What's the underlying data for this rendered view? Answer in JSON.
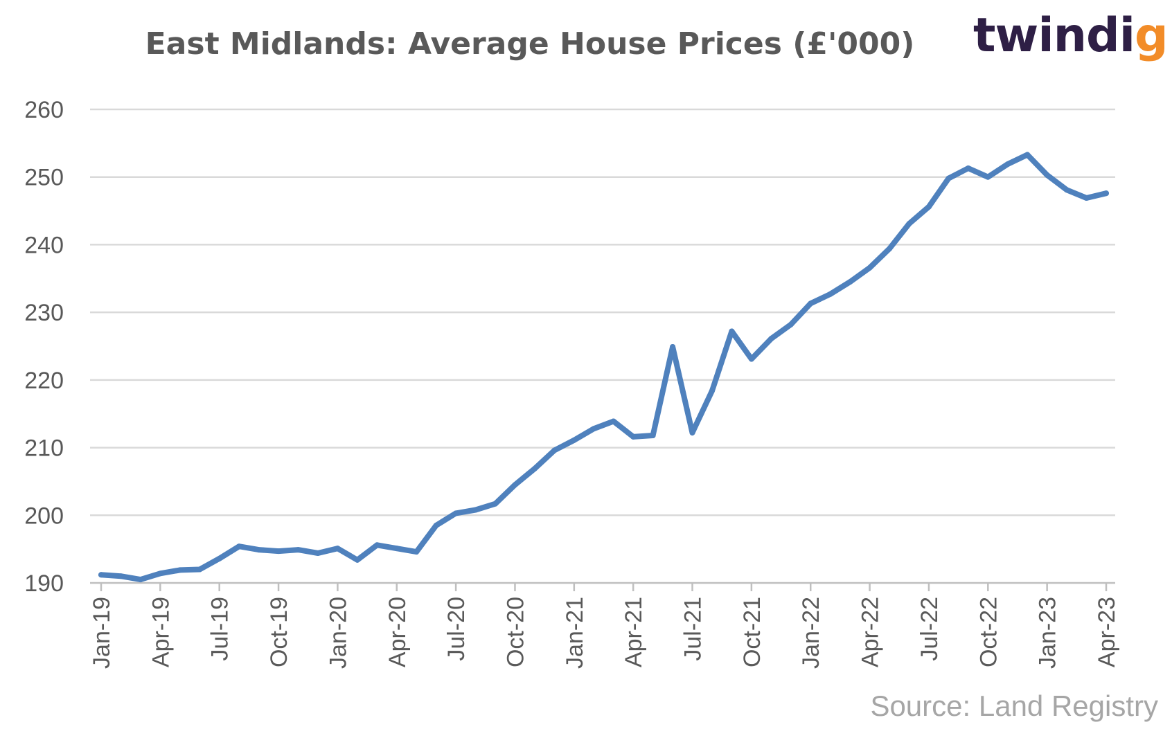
{
  "brand": {
    "name_start": "twindi",
    "name_end": "g",
    "accent_color": "#f28c28",
    "text_color": "#2e1f45"
  },
  "source": "Source: Land Registry",
  "chart_data": {
    "type": "line",
    "title": "East Midlands: Average House Prices (£'000)",
    "xlabel": "",
    "ylabel": "",
    "ylim": [
      190,
      260
    ],
    "yticks": [
      190,
      200,
      210,
      220,
      230,
      240,
      250,
      260
    ],
    "grid": true,
    "line_color": "#4f81bd",
    "x": [
      "Jan-19",
      "Feb-19",
      "Mar-19",
      "Apr-19",
      "May-19",
      "Jun-19",
      "Jul-19",
      "Aug-19",
      "Sep-19",
      "Oct-19",
      "Nov-19",
      "Dec-19",
      "Jan-20",
      "Feb-20",
      "Mar-20",
      "Apr-20",
      "May-20",
      "Jun-20",
      "Jul-20",
      "Aug-20",
      "Sep-20",
      "Oct-20",
      "Nov-20",
      "Dec-20",
      "Jan-21",
      "Feb-21",
      "Mar-21",
      "Apr-21",
      "May-21",
      "Jun-21",
      "Jul-21",
      "Aug-21",
      "Sep-21",
      "Oct-21",
      "Nov-21",
      "Dec-21",
      "Jan-22",
      "Feb-22",
      "Mar-22",
      "Apr-22",
      "May-22",
      "Jun-22",
      "Jul-22",
      "Aug-22",
      "Sep-22",
      "Oct-22",
      "Nov-22",
      "Dec-22",
      "Jan-23",
      "Feb-23",
      "Mar-23",
      "Apr-23"
    ],
    "xtick_labels": [
      "Jan-19",
      "Apr-19",
      "Jul-19",
      "Oct-19",
      "Jan-20",
      "Apr-20",
      "Jul-20",
      "Oct-20",
      "Jan-21",
      "Apr-21",
      "Jul-21",
      "Oct-21",
      "Jan-22",
      "Apr-22",
      "Jul-22",
      "Oct-22",
      "Jan-23",
      "Apr-23"
    ],
    "series": [
      {
        "values": [
          191.2,
          191.0,
          190.5,
          191.4,
          191.9,
          192.0,
          193.6,
          195.4,
          194.9,
          194.7,
          194.9,
          194.4,
          195.1,
          193.4,
          195.6,
          195.1,
          194.6,
          198.5,
          200.3,
          200.8,
          201.7,
          204.5,
          206.9,
          209.6,
          211.1,
          212.8,
          213.9,
          211.6,
          211.8,
          224.9,
          212.2,
          218.4,
          227.2,
          223.1,
          226.1,
          228.2,
          231.3,
          232.7,
          234.5,
          236.6,
          239.4,
          243.1,
          245.6,
          249.8,
          251.3,
          250.0,
          251.9,
          253.3,
          250.3,
          248.1,
          246.9,
          247.6
        ]
      }
    ]
  }
}
